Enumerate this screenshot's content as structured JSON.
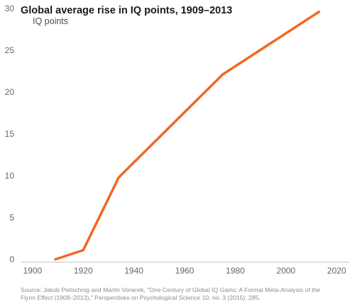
{
  "chart_data": {
    "type": "line",
    "title": "Global average rise in IQ points, 1909–2013",
    "subtitle": "IQ points",
    "xlabel": "",
    "ylabel": "",
    "x_ticks": [
      "1900",
      "1920",
      "1940",
      "1960",
      "1980",
      "2000",
      "2020"
    ],
    "y_ticks": [
      "0",
      "5",
      "10",
      "15",
      "20",
      "25",
      "30"
    ],
    "xlim": [
      1895,
      2025
    ],
    "ylim": [
      0,
      30
    ],
    "grid": false,
    "line_color": "#f26722",
    "series": [
      {
        "x": [
          1909,
          1920,
          1934,
          1975,
          2013
        ],
        "values": [
          0,
          1.1,
          9.8,
          22.1,
          29.6
        ]
      }
    ],
    "source_line1": "Source: Jakob Pietschnig and Martin Voracek, \"One Century of Global IQ Gains: A Formal Meta-Analysis of the",
    "source_line2": "Flynn Effect (1909–2013),\" Perspectives on Psychological Science 10, no. 3 (2015): 285."
  }
}
